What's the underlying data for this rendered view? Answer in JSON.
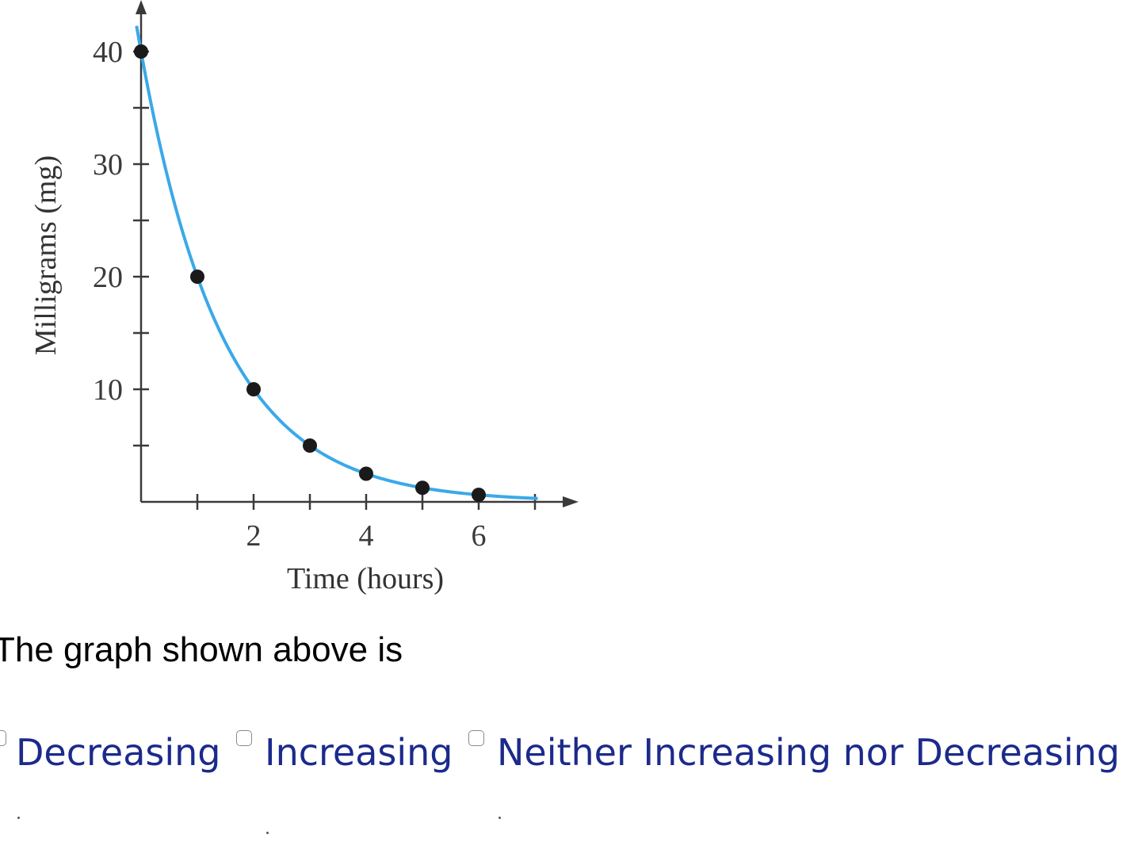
{
  "chart_data": {
    "type": "scatter",
    "xlabel": "Time (hours)",
    "ylabel": "Milligrams (mg)",
    "x_ticks": [
      1,
      2,
      3,
      4,
      5,
      6,
      7
    ],
    "x_tick_labels": [
      "2",
      "4",
      "6"
    ],
    "y_ticks": [
      5,
      10,
      15,
      20,
      25,
      30,
      35,
      40
    ],
    "y_tick_labels": [
      "10",
      "20",
      "30",
      "40"
    ],
    "xlim": [
      0,
      7.6
    ],
    "ylim": [
      0,
      44
    ],
    "grid": false,
    "series": [
      {
        "x": [
          0,
          1,
          2,
          3,
          4,
          5,
          6
        ],
        "y": [
          40,
          20,
          10,
          5,
          2.5,
          1.25,
          0.625
        ],
        "curve": "exponential decay y = 40 * 0.5^x",
        "curve_color": "#3aa9e8",
        "point_color": "#1a1a1a"
      }
    ]
  },
  "question": {
    "text": "The graph shown above is"
  },
  "choices": [
    {
      "label": "Decreasing"
    },
    {
      "label": "Increasing"
    },
    {
      "label": "Neither Increasing nor Decreasing"
    }
  ],
  "colors": {
    "choice_text": "#1c2a8c",
    "curve": "#3aa9e8",
    "axis": "#3a3a3a"
  }
}
